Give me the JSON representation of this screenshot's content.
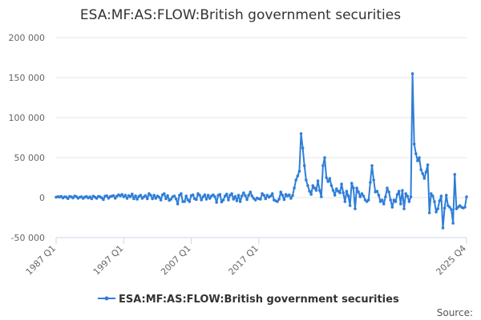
{
  "chart_data": {
    "type": "line",
    "title": "ESA:MF:AS:FLOW:British government securities",
    "xlabel": "",
    "ylabel": "",
    "x_start": "1987 Q1",
    "x_end": "2025 Q4",
    "ylim": [
      -50000,
      200000
    ],
    "yticks": [
      200000,
      150000,
      100000,
      50000,
      0,
      -50000
    ],
    "ytick_labels": [
      "200 000",
      "150 000",
      "100 000",
      "50 000",
      "0",
      "-50 000"
    ],
    "xtick_labels": [
      "1987 Q1",
      "1997 Q1",
      "2007 Q1",
      "2017 Q1",
      "2025 Q4"
    ],
    "grid": "horizontal",
    "legend_position": "bottom",
    "series": [
      {
        "name": "ESA:MF:AS:FLOW:British government securities",
        "color": "#2f7ed8",
        "values": [
          500,
          1200,
          800,
          1500,
          -500,
          1000,
          700,
          -1200,
          1500,
          900,
          -400,
          2000,
          1200,
          -800,
          500,
          1100,
          -1000,
          700,
          1300,
          -500,
          900,
          -1500,
          1800,
          600,
          -900,
          1400,
          1100,
          -300,
          -2500,
          1800,
          2200,
          -700,
          1200,
          1800,
          2500,
          -800,
          1800,
          3500,
          2200,
          4000,
          1000,
          3000,
          -1000,
          2500,
          1000,
          4500,
          -1500,
          2200,
          -2000,
          1500,
          3000,
          -1000,
          1000,
          2500,
          -1500,
          5000,
          3000,
          -1500,
          3000,
          -1000,
          2000,
          500,
          -3000,
          3500,
          5000,
          -1500,
          2500,
          -3500,
          -2000,
          1000,
          2000,
          -1500,
          -8000,
          3000,
          5000,
          -5000,
          -5000,
          2000,
          -3000,
          -5000,
          2500,
          3500,
          -1500,
          -2500,
          5000,
          3000,
          -3000,
          1000,
          3500,
          -2000,
          3000,
          -1000,
          2000,
          3500,
          1000,
          -6000,
          3000,
          4000,
          -5500,
          -3000,
          2000,
          4500,
          -3000,
          3000,
          5000,
          -2000,
          1500,
          -4000,
          3000,
          -5000,
          2000,
          6000,
          2500,
          -2500,
          3000,
          7000,
          2000,
          -1000,
          -3000,
          -500,
          -1500,
          -2000,
          5000,
          3000,
          -1500,
          3000,
          500,
          2000,
          5000,
          -3000,
          -4000,
          -5000,
          -2000,
          7000,
          3000,
          -2500,
          4000,
          2000,
          3500,
          -1000,
          2500,
          12000,
          22000,
          27000,
          33000,
          80000,
          62000,
          40000,
          22000,
          15000,
          8000,
          4000,
          15000,
          12000,
          9000,
          21000,
          9000,
          1000,
          40000,
          50000,
          25000,
          20000,
          24000,
          15000,
          9000,
          3000,
          11000,
          8000,
          6000,
          17000,
          6000,
          -5000,
          8000,
          2000,
          -10000,
          18000,
          12000,
          -14000,
          12000,
          7000,
          1000,
          5000,
          2000,
          -3000,
          -5000,
          -3000,
          19000,
          40000,
          22000,
          7000,
          8000,
          3000,
          -5000,
          -3000,
          -8000,
          1000,
          12000,
          7000,
          -3000,
          -12000,
          -3000,
          -5000,
          4000,
          8000,
          -8000,
          9000,
          -14000,
          5000,
          2000,
          -5000,
          1000,
          155000,
          67000,
          55000,
          46000,
          50000,
          35000,
          30000,
          24000,
          32000,
          41000,
          -19000,
          5000,
          2000,
          -5000,
          -18000,
          -14000,
          -4000,
          2000,
          -38000,
          -13000,
          3000,
          -10000,
          -12000,
          -15000,
          -32000,
          29000,
          -14000,
          -12000,
          -10000,
          -12000,
          -13000,
          -12000,
          1000
        ]
      }
    ],
    "source_label": "Source:"
  }
}
